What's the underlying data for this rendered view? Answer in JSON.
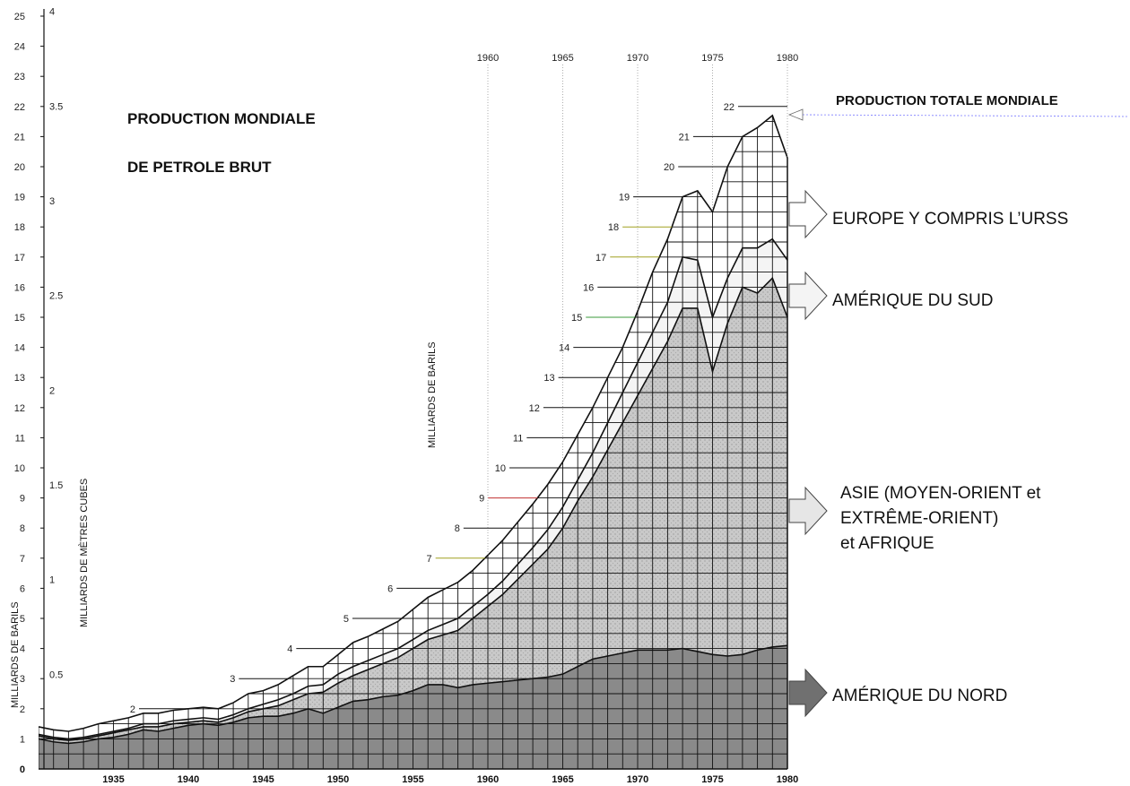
{
  "chart_data": {
    "type": "area",
    "title_line1": "PRODUCTION MONDIALE",
    "title_line2": "DE PETROLE BRUT",
    "total_label": "PRODUCTION TOTALE MONDIALE",
    "ylabel_left": "MILLIARDS DE BARILS",
    "ylabel_cubic": "MILLIARDS DE MÈTRES CUBES",
    "ylabel_inner": "MILLIARDS DE BARILS",
    "x_ticks": [
      "1935",
      "1940",
      "1945",
      "1950",
      "1955",
      "1960",
      "1965",
      "1970",
      "1975",
      "1980"
    ],
    "x_top_ticks": [
      "1960",
      "1965",
      "1970",
      "1975",
      "1980"
    ],
    "y_ticks": [
      "25",
      "24",
      "23",
      "22",
      "21",
      "20",
      "19",
      "18",
      "17",
      "16",
      "15",
      "14",
      "13",
      "12",
      "11",
      "10",
      "9",
      "8",
      "7",
      "6",
      "5",
      "4",
      "3",
      "2",
      "1",
      "0"
    ],
    "y_cubic_ticks": [
      "4",
      "3.5",
      "3",
      "2.5",
      "2",
      "1.5",
      "1",
      "0.5"
    ],
    "inner_labels": [
      "22",
      "21",
      "20",
      "19",
      "18",
      "17",
      "16",
      "15",
      "14",
      "13",
      "12",
      "11",
      "10",
      "9",
      "8",
      "7",
      "6",
      "5",
      "4",
      "3",
      "2"
    ],
    "ylim": [
      0,
      25
    ],
    "xlim": [
      1930,
      1980
    ],
    "x": [
      1930,
      1931,
      1932,
      1933,
      1934,
      1935,
      1936,
      1937,
      1938,
      1939,
      1940,
      1941,
      1942,
      1943,
      1944,
      1945,
      1946,
      1947,
      1948,
      1949,
      1950,
      1951,
      1952,
      1953,
      1954,
      1955,
      1956,
      1957,
      1958,
      1959,
      1960,
      1961,
      1962,
      1963,
      1964,
      1965,
      1966,
      1967,
      1968,
      1969,
      1970,
      1971,
      1972,
      1973,
      1974,
      1975,
      1976,
      1977,
      1978,
      1979,
      1980
    ],
    "series": [
      {
        "name": "AMÉRIQUE DU NORD",
        "values": [
          1.0,
          0.9,
          0.85,
          0.9,
          1.0,
          1.05,
          1.15,
          1.3,
          1.25,
          1.35,
          1.45,
          1.5,
          1.45,
          1.55,
          1.7,
          1.75,
          1.75,
          1.85,
          2.0,
          1.85,
          2.05,
          2.25,
          2.3,
          2.4,
          2.45,
          2.6,
          2.8,
          2.8,
          2.7,
          2.8,
          2.85,
          2.9,
          2.95,
          3.0,
          3.05,
          3.15,
          3.4,
          3.65,
          3.75,
          3.85,
          3.95,
          3.95,
          3.95,
          4.0,
          3.9,
          3.8,
          3.75,
          3.8,
          3.95,
          4.05,
          4.1
        ]
      },
      {
        "name": "ASIE (MOYEN-ORIENT et EXTRÊME-ORIENT) et AFRIQUE",
        "values": [
          1.1,
          1.0,
          0.95,
          1.0,
          1.1,
          1.2,
          1.3,
          1.4,
          1.4,
          1.5,
          1.55,
          1.6,
          1.55,
          1.7,
          1.9,
          2.0,
          2.1,
          2.3,
          2.5,
          2.55,
          2.85,
          3.1,
          3.3,
          3.5,
          3.7,
          4.0,
          4.3,
          4.45,
          4.6,
          5.0,
          5.4,
          5.8,
          6.3,
          6.8,
          7.3,
          8.0,
          8.9,
          9.7,
          10.6,
          11.5,
          12.4,
          13.3,
          14.2,
          15.3,
          15.3,
          13.2,
          14.8,
          16.0,
          15.8,
          16.3,
          15.0
        ]
      },
      {
        "name": "AMÉRIQUE DU SUD",
        "values": [
          1.15,
          1.05,
          1.0,
          1.05,
          1.15,
          1.25,
          1.35,
          1.5,
          1.5,
          1.6,
          1.65,
          1.7,
          1.65,
          1.8,
          2.0,
          2.15,
          2.3,
          2.5,
          2.75,
          2.8,
          3.15,
          3.4,
          3.6,
          3.8,
          4.0,
          4.3,
          4.6,
          4.8,
          5.0,
          5.4,
          5.8,
          6.25,
          6.8,
          7.35,
          7.95,
          8.7,
          9.6,
          10.5,
          11.5,
          12.5,
          13.5,
          14.5,
          15.5,
          17.0,
          16.9,
          15.0,
          16.3,
          17.3,
          17.3,
          17.6,
          16.9
        ]
      },
      {
        "name": "PRODUCTION TOTALE MONDIALE",
        "values": [
          1.4,
          1.3,
          1.25,
          1.35,
          1.5,
          1.6,
          1.7,
          1.85,
          1.85,
          1.95,
          2.0,
          2.05,
          2.0,
          2.2,
          2.5,
          2.6,
          2.8,
          3.1,
          3.4,
          3.4,
          3.8,
          4.2,
          4.4,
          4.65,
          4.9,
          5.3,
          5.7,
          5.95,
          6.2,
          6.6,
          7.1,
          7.6,
          8.2,
          8.8,
          9.45,
          10.2,
          11.1,
          12.0,
          13.0,
          14.0,
          15.2,
          16.5,
          17.6,
          19.0,
          19.2,
          18.5,
          20.0,
          21.0,
          21.3,
          21.7,
          20.3
        ]
      }
    ],
    "grid": true,
    "legend": "right, arrows pointing to regions"
  }
}
